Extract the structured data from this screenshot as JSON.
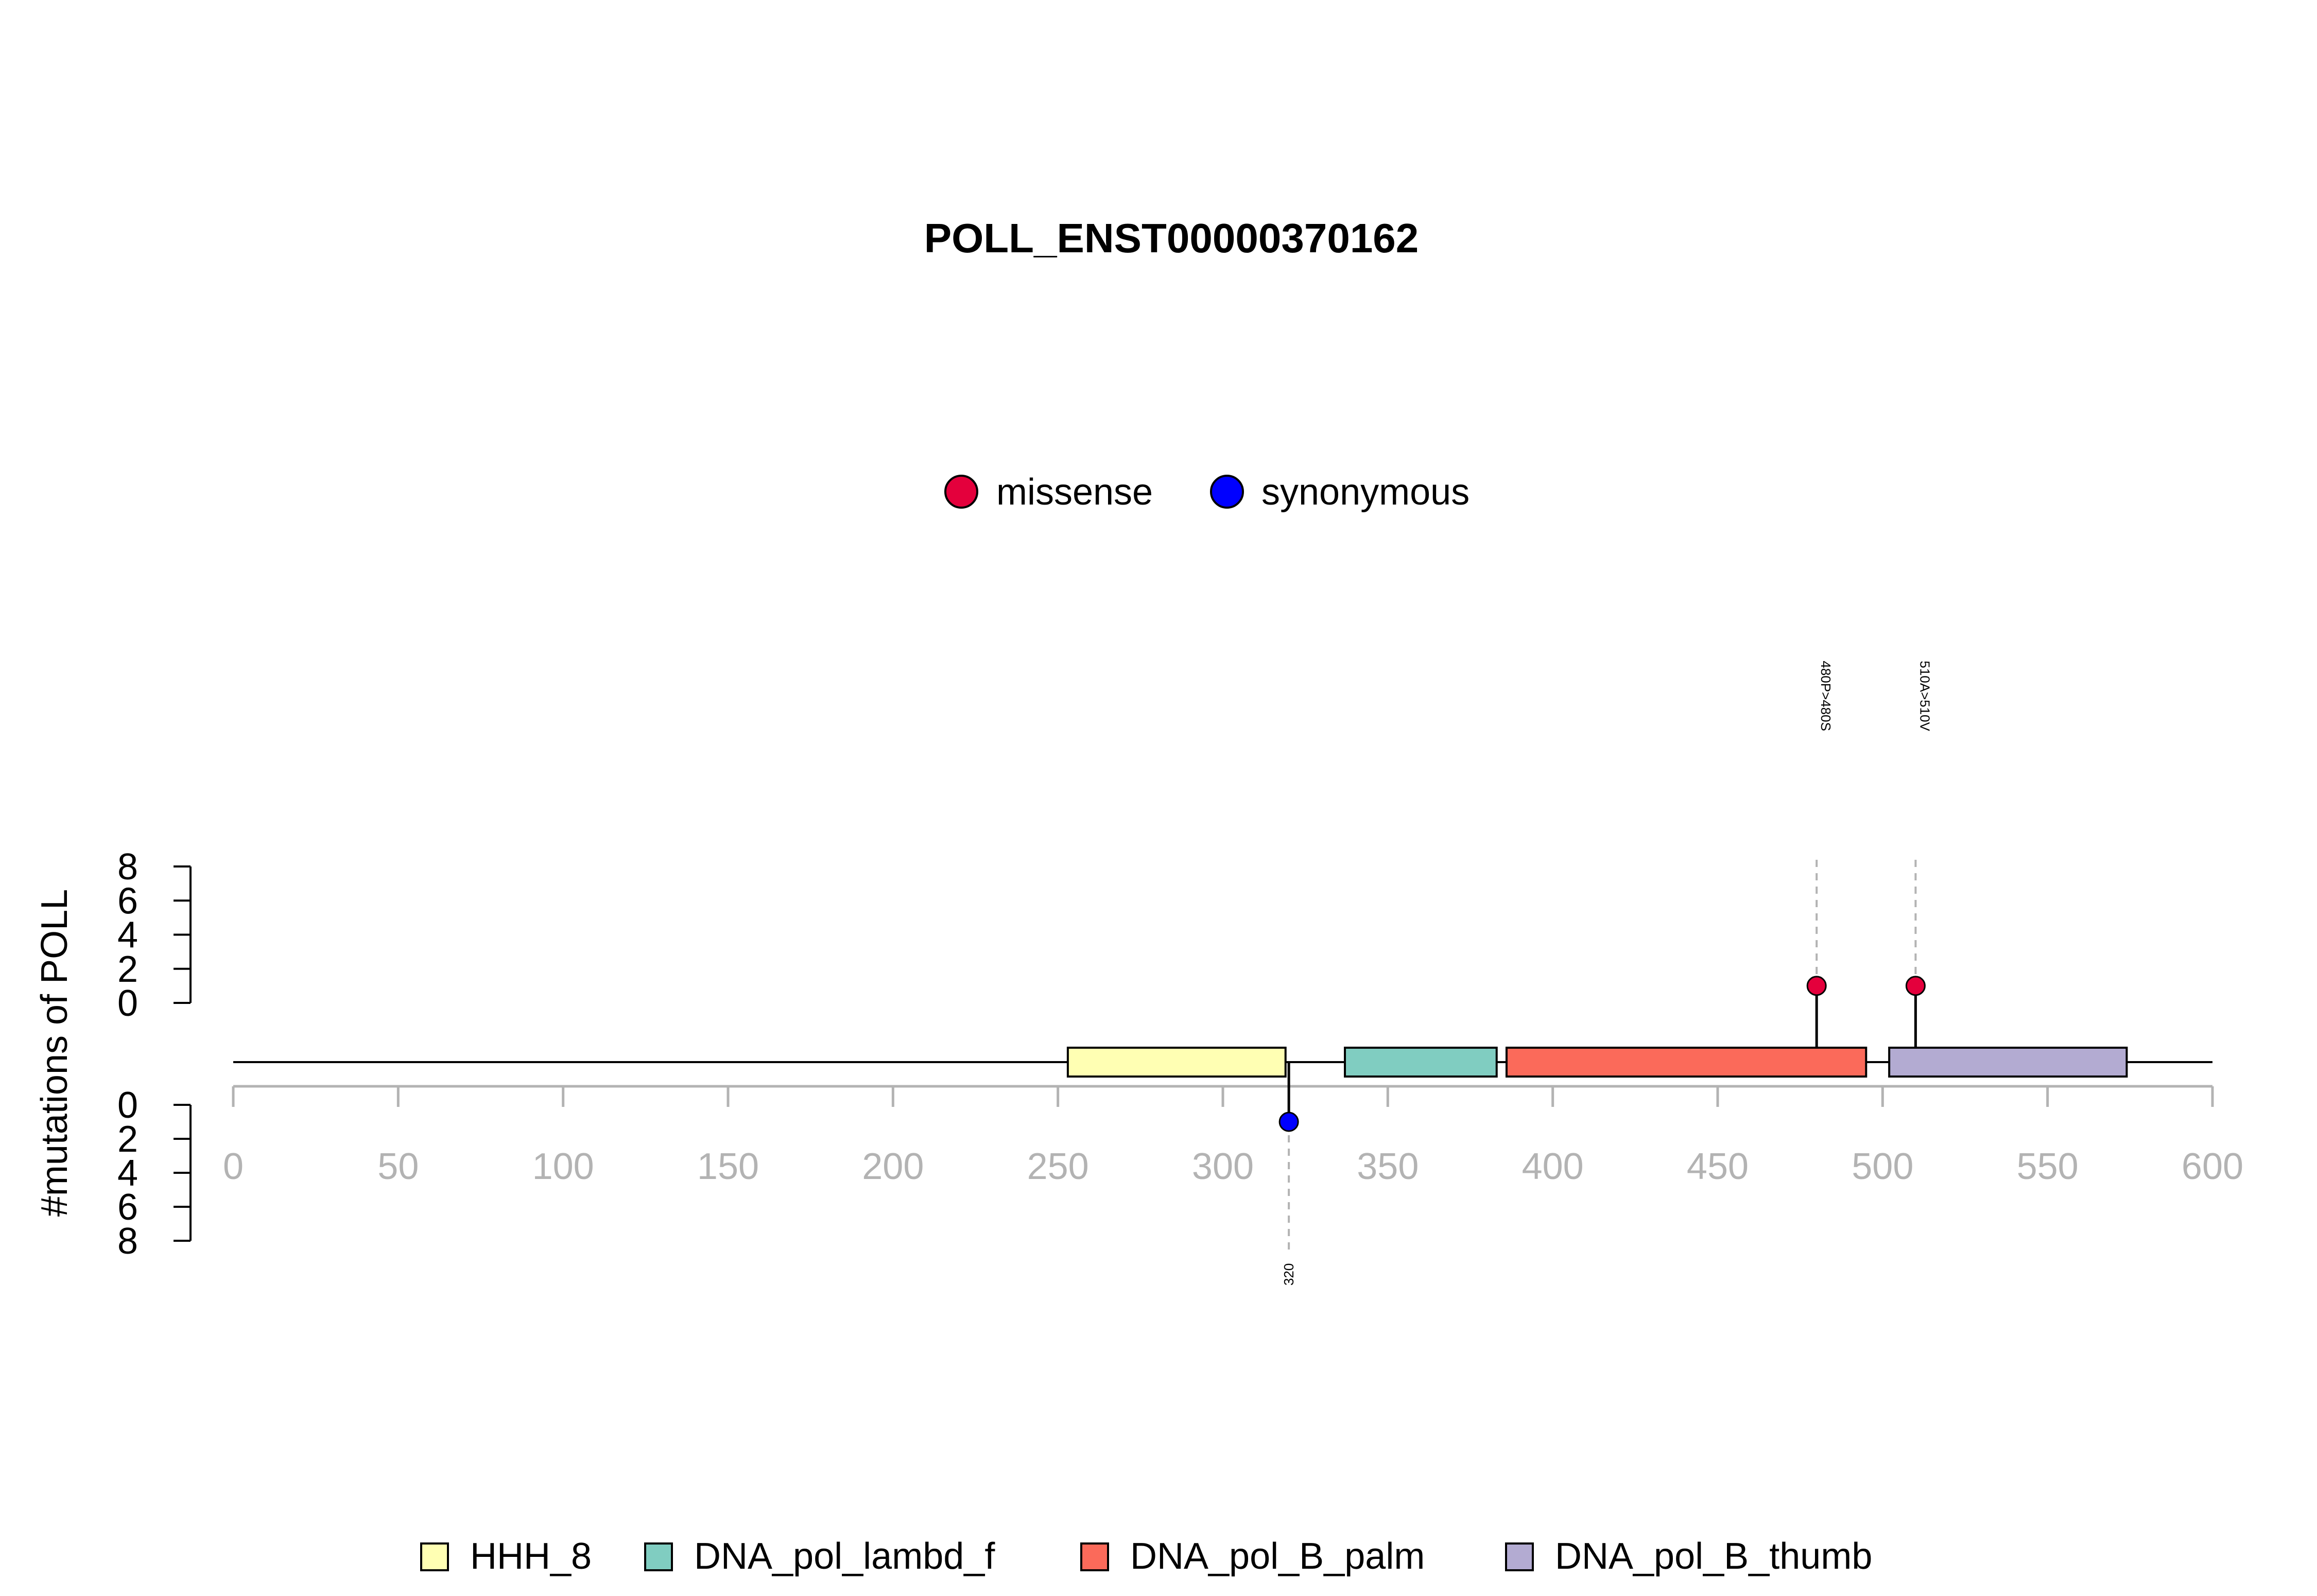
{
  "chart_data": {
    "type": "lollipop",
    "title": "POLL_ENST00000370162",
    "ylabel": "#mutations of POLL",
    "xlim": [
      0,
      600
    ],
    "x_ticks": [
      0,
      50,
      100,
      150,
      200,
      250,
      300,
      350,
      400,
      450,
      500,
      550,
      600
    ],
    "y_ticks_upper": [
      0,
      2,
      4,
      6,
      8
    ],
    "y_ticks_lower": [
      0,
      2,
      4,
      6,
      8
    ],
    "ylim_upper": [
      0,
      8
    ],
    "ylim_lower": [
      0,
      8
    ],
    "mutation_legend": [
      {
        "label": "missense",
        "color": "#E4003C"
      },
      {
        "label": "synonymous",
        "color": "#0000FF"
      }
    ],
    "mutations": [
      {
        "position": 480,
        "count": 1,
        "type": "missense",
        "label": "480P>480S",
        "side": "upper"
      },
      {
        "position": 510,
        "count": 1,
        "type": "missense",
        "label": "510A>510V",
        "side": "upper"
      },
      {
        "position": 320,
        "count": 1,
        "type": "synonymous",
        "label": "320",
        "side": "lower"
      }
    ],
    "domains": [
      {
        "name": "HHH_8",
        "start": 253,
        "end": 319,
        "color": "#FFFFB3"
      },
      {
        "name": "DNA_pol_lambd_f",
        "start": 337,
        "end": 383,
        "color": "#80CDC1"
      },
      {
        "name": "DNA_pol_B_palm",
        "start": 386,
        "end": 495,
        "color": "#FB6A5A"
      },
      {
        "name": "DNA_pol_B_thumb",
        "start": 502,
        "end": 574,
        "color": "#B3ABD2"
      }
    ],
    "protein_length": 600
  }
}
